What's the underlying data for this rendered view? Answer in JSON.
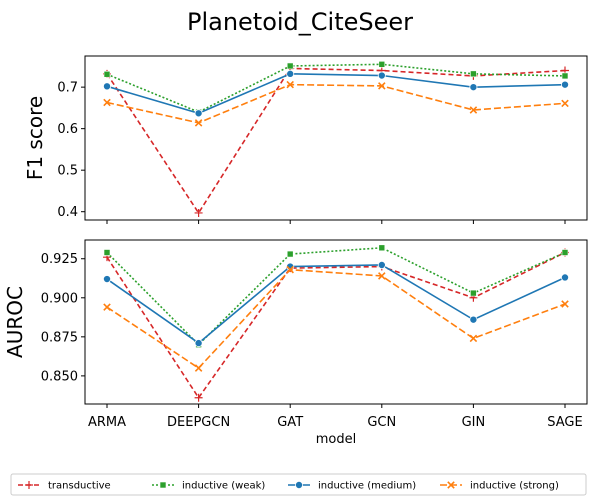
{
  "chart_data": {
    "title": "Planetoid_CiteSeer",
    "xlabel": "model",
    "categories": [
      "ARMA",
      "DEEPGCN",
      "GAT",
      "GCN",
      "GIN",
      "SAGE"
    ],
    "legend_placement": "bottom",
    "series_styles": [
      {
        "name": "transductive",
        "color": "#d62728",
        "dash": "5,3",
        "marker": "plus"
      },
      {
        "name": "inductive (weak)",
        "color": "#2ca02c",
        "dash": "2,2",
        "marker": "square"
      },
      {
        "name": "inductive (medium)",
        "color": "#1f77b4",
        "dash": "",
        "marker": "circle"
      },
      {
        "name": "inductive (strong)",
        "color": "#ff7f0e",
        "dash": "7,3",
        "marker": "x"
      }
    ],
    "panels": [
      {
        "type": "line",
        "ylabel": "F1 score",
        "ylim": [
          0.38,
          0.775
        ],
        "yticks": [
          0.4,
          0.5,
          0.6,
          0.7
        ],
        "ytick_labels": [
          "0.4",
          "0.5",
          "0.6",
          "0.7"
        ],
        "grid": false,
        "series": [
          {
            "name": "transductive",
            "values": [
              0.732,
              0.397,
              0.745,
              0.74,
              0.727,
              0.74
            ]
          },
          {
            "name": "inductive (weak)",
            "values": [
              0.731,
              0.64,
              0.751,
              0.755,
              0.732,
              0.727
            ]
          },
          {
            "name": "inductive (medium)",
            "values": [
              0.702,
              0.637,
              0.732,
              0.728,
              0.7,
              0.706
            ]
          },
          {
            "name": "inductive (strong)",
            "values": [
              0.663,
              0.614,
              0.706,
              0.703,
              0.645,
              0.661
            ]
          }
        ]
      },
      {
        "type": "line",
        "ylabel": "AUROC",
        "ylim": [
          0.832,
          0.937
        ],
        "yticks": [
          0.85,
          0.875,
          0.9,
          0.925
        ],
        "ytick_labels": [
          "0.850",
          "0.875",
          "0.900",
          "0.925"
        ],
        "grid": false,
        "series": [
          {
            "name": "transductive",
            "values": [
              0.926,
              0.836,
              0.919,
              0.92,
              0.9,
              0.929
            ]
          },
          {
            "name": "inductive (weak)",
            "values": [
              0.929,
              0.87,
              0.928,
              0.932,
              0.903,
              0.929
            ]
          },
          {
            "name": "inductive (medium)",
            "values": [
              0.912,
              0.871,
              0.92,
              0.921,
              0.886,
              0.913
            ]
          },
          {
            "name": "inductive (strong)",
            "values": [
              0.894,
              0.855,
              0.918,
              0.914,
              0.874,
              0.896
            ]
          }
        ]
      }
    ]
  }
}
